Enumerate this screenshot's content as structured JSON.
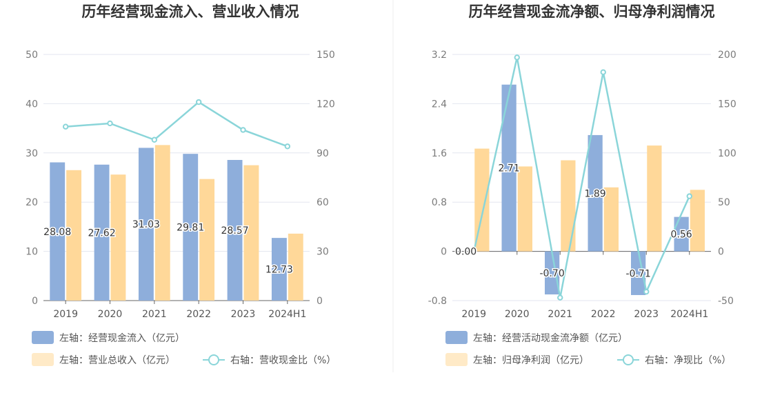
{
  "chart_data": [
    {
      "type": "bar",
      "title": "历年经营现金流入、营业收入情况",
      "categories": [
        "2019",
        "2020",
        "2021",
        "2022",
        "2023",
        "2024H1"
      ],
      "left_axis": {
        "ylim": [
          0,
          50
        ],
        "ticks": [
          "0",
          "10",
          "20",
          "30",
          "40",
          "50"
        ]
      },
      "right_axis": {
        "ylim": [
          0,
          150
        ],
        "ticks": [
          "0",
          "30",
          "60",
          "90",
          "120",
          "150"
        ]
      },
      "grid": true,
      "series": [
        {
          "name": "左轴：经营现金流入（亿元）",
          "kind": "bar",
          "axis": "left",
          "color": "#8eaedb",
          "values": [
            28.08,
            27.62,
            31.03,
            29.81,
            28.57,
            12.73
          ],
          "labels": [
            "28.08",
            "27.62",
            "31.03",
            "29.81",
            "28.57",
            "12.73"
          ]
        },
        {
          "name": "左轴：营业总收入（亿元）",
          "kind": "bar",
          "axis": "left",
          "color": "#ffd899",
          "values": [
            26.5,
            25.6,
            31.6,
            24.7,
            27.5,
            13.6
          ]
        },
        {
          "name": "右轴：营收现金比（%）",
          "kind": "line",
          "axis": "right",
          "color": "#8ad5d9",
          "values": [
            106,
            108,
            98,
            121,
            104,
            94
          ]
        }
      ],
      "legend_position": "bottom"
    },
    {
      "type": "bar",
      "title": "历年经营现金流净额、归母净利润情况",
      "categories": [
        "2019",
        "2020",
        "2021",
        "2022",
        "2023",
        "2024H1"
      ],
      "left_axis": {
        "ylim": [
          -0.8,
          3.2
        ],
        "ticks": [
          "-0.8",
          "0",
          "0.8",
          "1.6",
          "2.4",
          "3.2"
        ]
      },
      "right_axis": {
        "ylim": [
          -50,
          200
        ],
        "ticks": [
          "-50",
          "0",
          "50",
          "100",
          "150",
          "200"
        ]
      },
      "grid": true,
      "series": [
        {
          "name": "左轴：经营活动现金流净额（亿元）",
          "kind": "bar",
          "axis": "left",
          "color": "#8eaedb",
          "values": [
            0.0,
            2.71,
            -0.7,
            1.89,
            -0.71,
            0.56
          ],
          "labels": [
            "0.00",
            "2.71",
            "-0.70",
            "1.89",
            "-0.71",
            "0.56"
          ]
        },
        {
          "name": "左轴：归母净利润（亿元）",
          "kind": "bar",
          "axis": "left",
          "color": "#ffd899",
          "values": [
            1.67,
            1.38,
            1.48,
            1.04,
            1.72,
            1.0
          ]
        },
        {
          "name": "右轴：净现比（%）",
          "kind": "line",
          "axis": "right",
          "color": "#8ad5d9",
          "values": [
            0,
            197,
            -47,
            182,
            -41,
            56
          ]
        }
      ],
      "legend_position": "bottom"
    }
  ]
}
